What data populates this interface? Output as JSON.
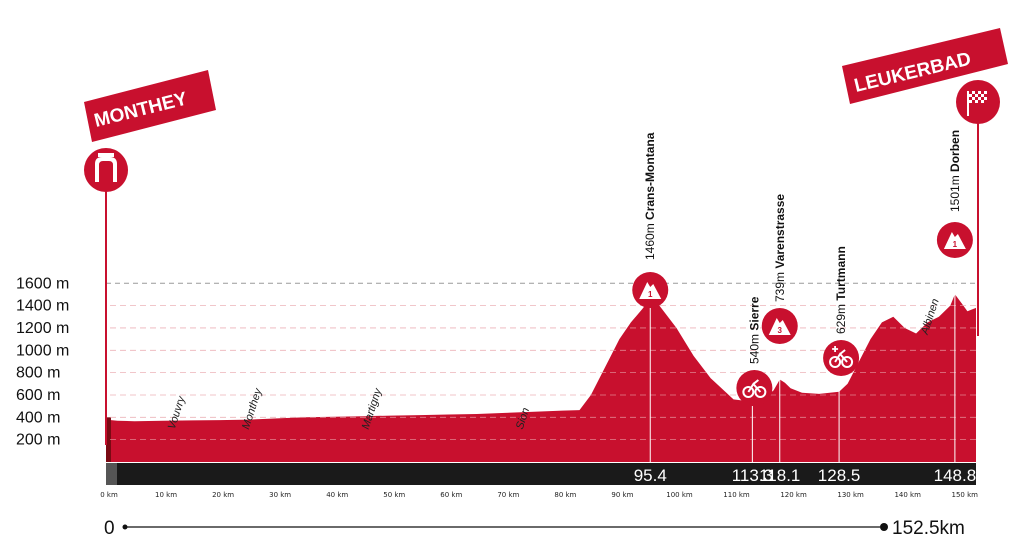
{
  "banners": {
    "start": "MONTHEY",
    "finish": "LEUKERBAD"
  },
  "distance_bar": {
    "start_label": "0",
    "end_label": "152.5km"
  },
  "colors": {
    "profile": "#c8102e",
    "dark_profile": "#7a0a14",
    "bar": "#1a1a1a",
    "grid": "#cfcfcf",
    "dashed_max": "#9a9a9a"
  },
  "icons": {
    "start": "start-gate-icon",
    "finish": "checkered-flag-icon",
    "climb_cat_1": "mountain-cat-1-icon",
    "climb_cat_3": "mountain-cat-3-icon",
    "sprint": "intermediate-sprint-icon",
    "bonus_sprint": "bonus-sprint-icon"
  },
  "chart_data": {
    "type": "area",
    "title": "",
    "xlabel": "",
    "ylabel": "",
    "x_unit": "km",
    "y_unit": "m",
    "xlim": [
      0,
      152.5
    ],
    "ylim": [
      0,
      1600
    ],
    "yticks": [
      200,
      400,
      600,
      800,
      1000,
      1200,
      1400,
      1600
    ],
    "ytick_labels": [
      "200 m",
      "400 m",
      "600 m",
      "800 m",
      "1000 m",
      "1200 m",
      "1400 m",
      "1600 m"
    ],
    "xticks": [
      0,
      10,
      20,
      30,
      40,
      50,
      60,
      70,
      80,
      90,
      100,
      110,
      120,
      130,
      140,
      150
    ],
    "xtick_labels": [
      "0 km",
      "10 km",
      "20 km",
      "30 km",
      "40 km",
      "50 km",
      "60 km",
      "70 km",
      "80 km",
      "90 km",
      "100 km",
      "110 km",
      "120 km",
      "130 km",
      "140 km",
      "150 km"
    ],
    "grid": true,
    "series": [
      {
        "x": [
          0,
          2,
          5,
          10,
          15,
          20,
          25,
          30,
          35,
          40,
          45,
          50,
          55,
          60,
          65,
          70,
          75,
          80,
          83,
          85,
          88,
          90,
          92,
          94,
          95.4,
          97,
          100,
          103,
          106,
          110,
          113.3,
          115,
          117,
          118.1,
          119,
          120,
          122,
          125,
          128.5,
          130,
          132,
          134,
          136,
          138,
          140,
          142,
          144,
          146,
          148,
          148.8,
          150,
          151,
          152.5
        ],
        "y": [
          380,
          370,
          365,
          370,
          372,
          375,
          380,
          390,
          400,
          405,
          410,
          415,
          420,
          425,
          430,
          440,
          450,
          460,
          465,
          600,
          900,
          1100,
          1250,
          1370,
          1460,
          1400,
          1200,
          950,
          750,
          560,
          540,
          560,
          640,
          739,
          710,
          660,
          620,
          610,
          629,
          700,
          900,
          1100,
          1250,
          1300,
          1200,
          1150,
          1250,
          1300,
          1400,
          1501,
          1420,
          1350,
          1380
        ]
      }
    ],
    "climbs": [
      {
        "name": "Crans-Montana",
        "altitude": "1460m",
        "km": 95.4,
        "km_label": "95.4",
        "category": "1"
      },
      {
        "name": "Varenstrasse",
        "altitude": "739m",
        "km": 118.1,
        "km_label": "118.1",
        "category": "3"
      },
      {
        "name": "Dorben",
        "altitude": "1501m",
        "km": 148.8,
        "km_label": "148.8",
        "category": "1"
      }
    ],
    "sprints": [
      {
        "name": "Sierre",
        "altitude": "540m",
        "km": 113.3,
        "km_label": "113.3",
        "kind": "bonus"
      },
      {
        "name": "Turtmann",
        "altitude": "629m",
        "km": 128.5,
        "km_label": "128.5",
        "kind": "sprint"
      }
    ],
    "places": [
      {
        "name": "Vouvry",
        "km": 12
      },
      {
        "name": "Monthey",
        "km": 25
      },
      {
        "name": "Martigny",
        "km": 46
      },
      {
        "name": "Sion",
        "km": 73
      },
      {
        "name": "Albinen",
        "km": 144
      }
    ]
  }
}
